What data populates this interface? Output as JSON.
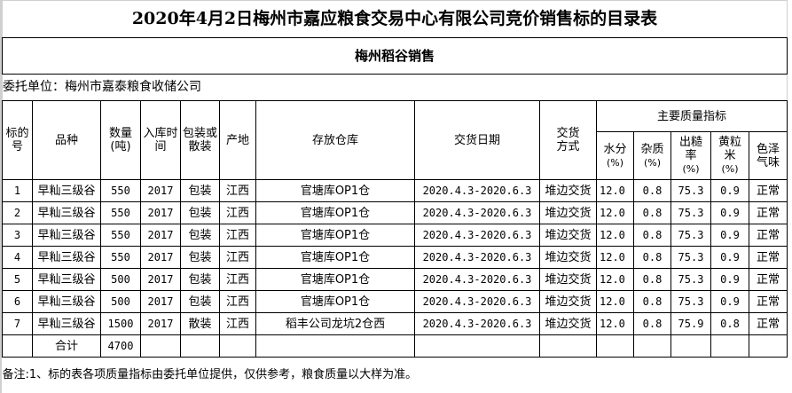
{
  "title": "2020年4月2日梅州市嘉应粮食交易中心有限公司竞价销售标的目录表",
  "subtitle": "梅州稻谷销售",
  "client": "委托单位：梅州市嘉泰粮食收储公司",
  "headers": {
    "lot_no": "标的号",
    "variety": "品种",
    "quantity": "数量(吨)",
    "storage_year": "入库时间",
    "packing": "包装或散装",
    "origin": "产地",
    "warehouse": "存放仓库",
    "delivery_date": "交货日期",
    "delivery_method": "交货方式",
    "quality_group": "主要质量指标",
    "moisture": "水分",
    "impurity": "杂质",
    "yield": "出糙率",
    "yellow": "黄粒米",
    "color_smell": "色泽气味",
    "pct": "(%)"
  },
  "rows": [
    [
      "1",
      "早籼三级谷",
      "550",
      "2017",
      "包装",
      "江西",
      "官塘库OP1仓",
      "2020.4.3-2020.6.3",
      "堆边交货",
      "12.0",
      "0.8",
      "75.3",
      "0.9",
      "正常"
    ],
    [
      "2",
      "早籼三级谷",
      "550",
      "2017",
      "包装",
      "江西",
      "官塘库OP1仓",
      "2020.4.3-2020.6.3",
      "堆边交货",
      "12.0",
      "0.8",
      "75.3",
      "0.9",
      "正常"
    ],
    [
      "3",
      "早籼三级谷",
      "550",
      "2017",
      "包装",
      "江西",
      "官塘库OP1仓",
      "2020.4.3-2020.6.3",
      "堆边交货",
      "12.0",
      "0.8",
      "75.3",
      "0.9",
      "正常"
    ],
    [
      "4",
      "早籼三级谷",
      "550",
      "2017",
      "包装",
      "江西",
      "官塘库OP1仓",
      "2020.4.3-2020.6.3",
      "堆边交货",
      "12.0",
      "0.8",
      "75.3",
      "0.9",
      "正常"
    ],
    [
      "5",
      "早籼三级谷",
      "500",
      "2017",
      "包装",
      "江西",
      "官塘库OP1仓",
      "2020.4.3-2020.6.3",
      "堆边交货",
      "12.0",
      "0.8",
      "75.3",
      "0.9",
      "正常"
    ],
    [
      "6",
      "早籼三级谷",
      "500",
      "2017",
      "包装",
      "江西",
      "官塘库OP1仓",
      "2020.4.3-2020.6.3",
      "堆边交货",
      "12.0",
      "0.8",
      "75.3",
      "0.9",
      "正常"
    ],
    [
      "7",
      "早籼三级谷",
      "1500",
      "2017",
      "散装",
      "江西",
      "稻丰公司龙坑2仓西",
      "2020.4.3-2020.6.3",
      "堆边交货",
      "12.0",
      "0.8",
      "75.9",
      "0.8",
      "正常"
    ]
  ],
  "total": {
    "label": "合计",
    "quantity": "4700"
  },
  "note": "备注:1、标的表各项质量指标由委托单位提供，仅供参考，粮食质量以大样为准。"
}
